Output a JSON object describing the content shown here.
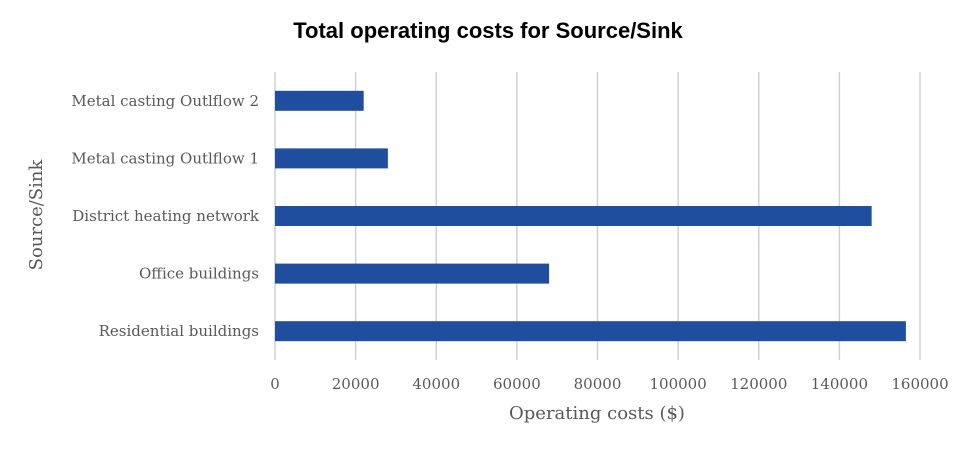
{
  "chart_data": {
    "type": "bar",
    "orientation": "horizontal",
    "title": "Total operating costs for Source/Sink",
    "xlabel": "Operating costs ($)",
    "ylabel": "Source/Sink",
    "categories": [
      "Metal casting Outlflow 2",
      "Metal casting Outlflow 1",
      "District heating network",
      "Office buildings",
      "Residential buildings"
    ],
    "values": [
      22000,
      28000,
      148000,
      68000,
      156500
    ],
    "xlim": [
      0,
      160000
    ],
    "xticks": [
      "0",
      "20000",
      "40000",
      "60000",
      "80000",
      "100000",
      "120000",
      "140000",
      "160000"
    ],
    "grid": "vertical",
    "bar_color": "#1F4E9E"
  }
}
